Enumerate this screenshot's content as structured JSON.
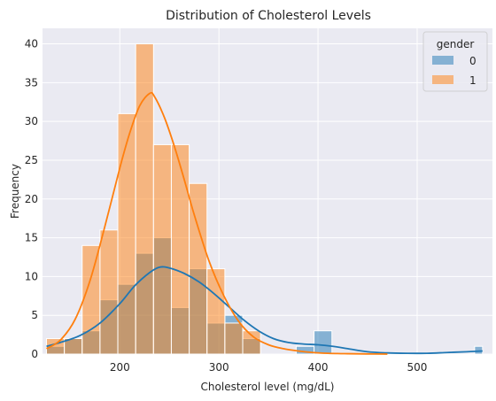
{
  "chart_data": {
    "type": "histogram",
    "title": "Distribution of Cholesterol Levels",
    "xlabel": "Cholesterol level (mg/dL)",
    "ylabel": "Frequency",
    "xlim": [
      122,
      576
    ],
    "ylim": [
      0,
      42
    ],
    "xticks": [
      200,
      300,
      400,
      500
    ],
    "yticks": [
      0,
      5,
      10,
      15,
      20,
      25,
      30,
      35,
      40
    ],
    "grid": true,
    "legend": {
      "title": "gender",
      "placement": "top-right"
    },
    "bin_edges": [
      126,
      144,
      162,
      180,
      198,
      216,
      234,
      252,
      270,
      288,
      306,
      324,
      342,
      360,
      378,
      396,
      414,
      432,
      450,
      468,
      486,
      504,
      522,
      540,
      558,
      566
    ],
    "series": [
      {
        "name": "0",
        "color": "#1f77b4",
        "counts": [
          1,
          2,
          3,
          7,
          9,
          13,
          15,
          6,
          11,
          4,
          5,
          2,
          0,
          0,
          1,
          3,
          0,
          0,
          0,
          0,
          0,
          0,
          0,
          0,
          1
        ],
        "kde_x": [
          126,
          140,
          160,
          180,
          200,
          215,
          230,
          240,
          250,
          265,
          280,
          295,
          310,
          325,
          340,
          355,
          370,
          385,
          400,
          415,
          430,
          450,
          470,
          490,
          510,
          530,
          550,
          566
        ],
        "kde_y": [
          1.0,
          1.5,
          2.4,
          4.0,
          6.5,
          8.8,
          10.5,
          11.2,
          11.1,
          10.4,
          9.3,
          7.8,
          6.1,
          4.4,
          3.0,
          2.0,
          1.5,
          1.3,
          1.2,
          1.0,
          0.7,
          0.3,
          0.15,
          0.1,
          0.1,
          0.2,
          0.3,
          0.4
        ]
      },
      {
        "name": "1",
        "color": "#ff7f0e",
        "counts": [
          2,
          2,
          14,
          16,
          31,
          40,
          27,
          27,
          22,
          11,
          4,
          3,
          0,
          0,
          0,
          0,
          0,
          0,
          0,
          0,
          0,
          0,
          0,
          0,
          0
        ],
        "kde_x": [
          126,
          140,
          155,
          170,
          185,
          200,
          210,
          220,
          230,
          235,
          245,
          255,
          265,
          275,
          290,
          305,
          320,
          335,
          350,
          365,
          380,
          395,
          410,
          430,
          450,
          470
        ],
        "kde_y": [
          0.7,
          1.8,
          4.5,
          9.5,
          16.5,
          24.0,
          28.5,
          32.0,
          33.6,
          33.2,
          30.5,
          26.8,
          22.5,
          18.0,
          12.0,
          7.5,
          4.2,
          2.2,
          1.2,
          0.7,
          0.4,
          0.2,
          0.1,
          0.05,
          0.02,
          0.0
        ]
      }
    ]
  }
}
